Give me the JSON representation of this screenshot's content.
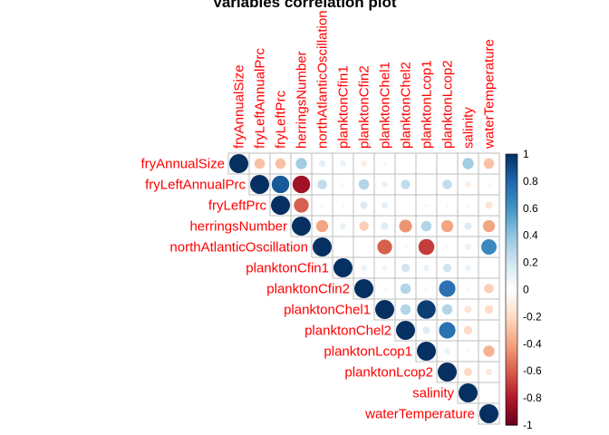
{
  "chart_data": {
    "type": "heatmap",
    "subtype": "correlation-circle-upper",
    "title": "Variables correlation plot",
    "variables": [
      "fryAnnualSize",
      "fryLeftAnnualPrc",
      "fryLeftPrc",
      "herringsNumber",
      "northAtlanticOscillation",
      "planktonCfin1",
      "planktonCfin2",
      "planktonChel1",
      "planktonChel2",
      "planktonLcop1",
      "planktonLcop2",
      "salinity",
      "waterTemperature"
    ],
    "matrix": [
      [
        1,
        -0.3,
        -0.3,
        0.35,
        0.12,
        0.1,
        -0.1,
        0.05,
        0,
        0,
        0,
        0.35,
        -0.3
      ],
      [
        -0.3,
        1,
        0.85,
        -0.85,
        0.25,
        -0.05,
        0.3,
        0.1,
        0.25,
        0,
        0.25,
        -0.1,
        -0.05
      ],
      [
        -0.3,
        0.85,
        1,
        -0.6,
        -0.05,
        -0.05,
        0.15,
        0.12,
        0,
        0.05,
        0.05,
        0.05,
        -0.15
      ],
      [
        0.35,
        -0.85,
        -0.6,
        1,
        -0.4,
        0.1,
        -0.25,
        0.15,
        -0.45,
        0.3,
        -0.4,
        0.15,
        -0.4
      ],
      [
        0.12,
        0.25,
        -0.05,
        -0.4,
        1,
        0,
        0,
        -0.6,
        0.05,
        -0.7,
        0.05,
        0.1,
        0.65
      ],
      [
        0.1,
        -0.05,
        -0.05,
        0.1,
        0,
        1,
        0.1,
        0.08,
        0.2,
        0.1,
        0.2,
        0.1,
        0
      ],
      [
        -0.1,
        0.3,
        0.15,
        -0.25,
        0,
        0.1,
        1,
        0.05,
        0.3,
        0.05,
        0.75,
        -0.05,
        -0.25
      ],
      [
        0.05,
        0.1,
        0.12,
        0.15,
        -0.6,
        0.08,
        0.05,
        1,
        0.3,
        0.95,
        0.3,
        -0.15,
        -0.2
      ],
      [
        0,
        0.25,
        0,
        -0.45,
        0.05,
        0.2,
        0.3,
        0.3,
        1,
        0.15,
        0.75,
        -0.2,
        0
      ],
      [
        0,
        0,
        0.05,
        0.3,
        -0.7,
        0.1,
        0.05,
        0.95,
        0.15,
        1,
        0.1,
        -0.05,
        -0.35
      ],
      [
        0,
        0.25,
        0.05,
        -0.4,
        0.05,
        0.2,
        0.75,
        0.3,
        0.75,
        0.1,
        1,
        -0.2,
        -0.12
      ],
      [
        0.35,
        -0.1,
        0.05,
        0.15,
        0.1,
        0.1,
        -0.05,
        -0.15,
        -0.2,
        -0.05,
        -0.2,
        1,
        0
      ],
      [
        -0.3,
        -0.05,
        -0.15,
        -0.4,
        0.65,
        0,
        -0.25,
        -0.2,
        0,
        -0.35,
        -0.12,
        0,
        1
      ]
    ],
    "colorbar": {
      "range": [
        -1,
        1
      ],
      "ticks": [
        -1,
        -0.8,
        -0.6,
        -0.4,
        -0.2,
        0,
        0.2,
        0.4,
        0.6,
        0.8,
        1
      ],
      "tick_labels": [
        "-1",
        "-0.8",
        "-0.6",
        "-0.4",
        "-0.2",
        "0",
        "0.2",
        "0.4",
        "0.6",
        "0.8",
        "1"
      ],
      "colors": [
        "#67001F",
        "#B2182B",
        "#D6604D",
        "#F4A582",
        "#FDDBC7",
        "#FFFFFF",
        "#D1E5F0",
        "#92C5DE",
        "#4393C3",
        "#2166AC",
        "#053061"
      ]
    },
    "label_color": "#FF0000",
    "grid_color": "#BEBEBE"
  }
}
